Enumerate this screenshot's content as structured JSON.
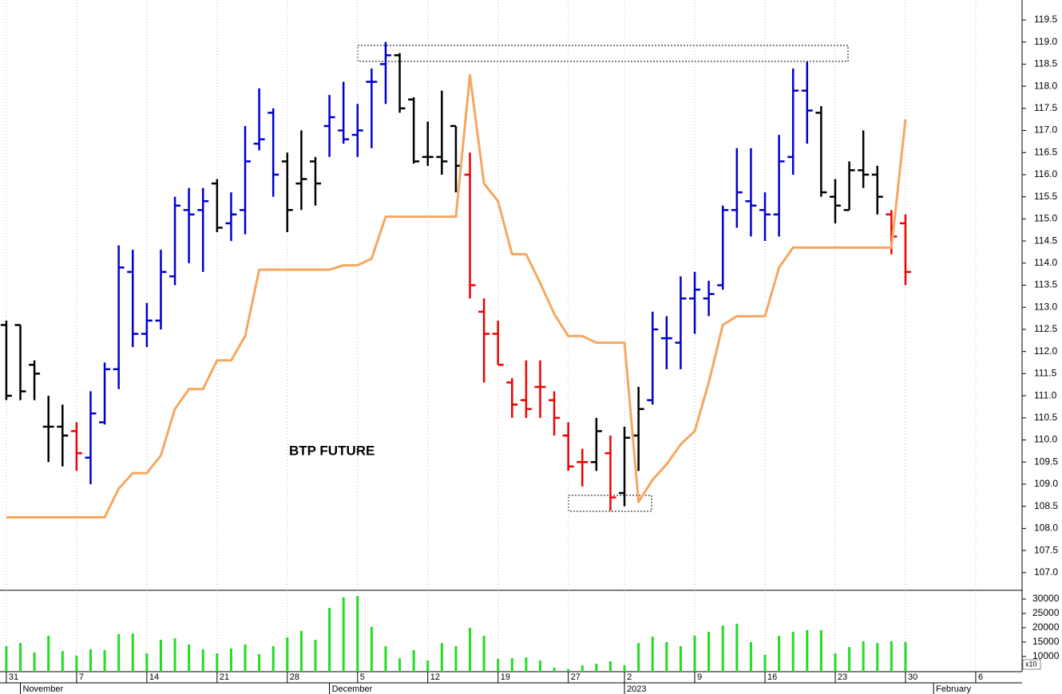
{
  "chart_data": [
    {
      "type": "ohlc",
      "annotation": "BTP FUTURE",
      "xlim": [
        -0.45,
        72.3
      ],
      "ylim": [
        106.6,
        119.95
      ],
      "yticks": [
        {
          "value": 107,
          "label": "107.0"
        },
        107.5,
        {
          "value": 108,
          "label": "108.0"
        },
        108.5,
        {
          "value": 109,
          "label": "109.0"
        },
        109.5,
        {
          "value": 110,
          "label": "110.0"
        },
        110.5,
        {
          "value": 111,
          "label": "111.0"
        },
        111.5,
        {
          "value": 112,
          "label": "112.0"
        },
        112.5,
        {
          "value": 113,
          "label": "113.0"
        },
        113.5,
        {
          "value": 114,
          "label": "114.0"
        },
        114.5,
        {
          "value": 115,
          "label": "115.0"
        },
        115.5,
        {
          "value": 116,
          "label": "116.0"
        },
        116.5,
        {
          "value": 117,
          "label": "117.0"
        },
        117.5,
        {
          "value": 118,
          "label": "118.0"
        },
        118.5,
        {
          "value": 119,
          "label": "119.0"
        },
        119.5
      ],
      "x": [
        0,
        1,
        2,
        3,
        4,
        5,
        6,
        7,
        8,
        9,
        10,
        11,
        12,
        13,
        14,
        15,
        16,
        17,
        18,
        19,
        20,
        21,
        22,
        23,
        24,
        25,
        26,
        27,
        28,
        29,
        30,
        31,
        32,
        33,
        34,
        35,
        36,
        37,
        38,
        39,
        40,
        41,
        42,
        43,
        44,
        45,
        46,
        47,
        48,
        49,
        50,
        51,
        52,
        53,
        54,
        55,
        56,
        57,
        58,
        59,
        60,
        61,
        62,
        63,
        64
      ],
      "open": [
        112.6,
        112.6,
        111.7,
        110.3,
        110.3,
        110.2,
        109.6,
        110.4,
        111.6,
        113.8,
        112.4,
        112.7,
        113.7,
        115.2,
        115.2,
        115.8,
        114.9,
        115.2,
        116.7,
        117.4,
        116.3,
        115.8,
        116.3,
        117.1,
        117.0,
        116.9,
        118.1,
        118.5,
        118.7,
        117.7,
        116.4,
        116.4,
        117.1,
        116.0,
        112.9,
        112.4,
        111.3,
        110.9,
        111.2,
        110.9,
        110.1,
        109.5,
        109.5,
        109.7,
        108.8,
        110.1,
        110.9,
        112.3,
        112.2,
        113.2,
        113.2,
        113.5,
        115.2,
        115.4,
        115.2,
        115.1,
        116.4,
        117.9,
        117.4,
        115.5,
        115.2,
        116.1,
        116.0,
        115.1,
        114.9
      ],
      "high": [
        112.7,
        112.6,
        111.8,
        111.0,
        110.8,
        110.4,
        111.1,
        111.75,
        114.4,
        114.3,
        113.1,
        114.3,
        115.5,
        115.7,
        115.7,
        115.9,
        115.6,
        117.1,
        117.95,
        117.5,
        116.5,
        117.0,
        116.4,
        117.8,
        118.1,
        117.6,
        118.4,
        119.0,
        118.75,
        117.75,
        117.2,
        117.9,
        117.1,
        116.5,
        113.2,
        112.7,
        111.4,
        111.8,
        111.8,
        111.1,
        110.4,
        109.8,
        110.5,
        110.1,
        110.3,
        111.2,
        112.9,
        112.8,
        113.7,
        113.8,
        113.6,
        115.3,
        116.6,
        116.6,
        115.6,
        116.9,
        118.4,
        118.55,
        117.55,
        115.9,
        116.3,
        117.0,
        116.2,
        115.2,
        115.1
      ],
      "low": [
        110.9,
        110.9,
        110.9,
        109.5,
        109.4,
        109.3,
        109.0,
        110.35,
        111.15,
        112.1,
        112.1,
        112.5,
        113.5,
        114.0,
        113.8,
        114.7,
        114.5,
        114.65,
        116.55,
        115.5,
        114.7,
        115.2,
        115.3,
        116.4,
        116.7,
        116.4,
        116.6,
        117.6,
        117.4,
        116.25,
        116.2,
        116.0,
        115.6,
        113.2,
        111.3,
        111.7,
        110.5,
        110.5,
        110.5,
        110.1,
        109.3,
        108.95,
        109.3,
        108.4,
        108.5,
        109.3,
        110.8,
        111.6,
        111.6,
        112.4,
        112.8,
        113.4,
        114.8,
        114.6,
        114.5,
        114.6,
        116.0,
        116.7,
        115.5,
        114.9,
        115.2,
        115.7,
        115.1,
        114.2,
        113.5
      ],
      "close": [
        111.0,
        111.1,
        111.5,
        110.3,
        110.1,
        109.7,
        110.6,
        111.6,
        113.9,
        112.4,
        112.7,
        113.8,
        115.3,
        115.1,
        115.4,
        114.8,
        115.1,
        116.3,
        116.8,
        116.0,
        115.2,
        115.9,
        115.8,
        117.3,
        116.8,
        117.0,
        118.1,
        118.7,
        117.5,
        116.3,
        116.4,
        116.3,
        116.2,
        113.5,
        112.4,
        111.7,
        110.8,
        110.7,
        111.2,
        110.5,
        109.4,
        109.5,
        110.2,
        108.7,
        110.05,
        110.7,
        112.5,
        112.3,
        113.2,
        113.4,
        113.3,
        115.2,
        115.6,
        115.3,
        115.1,
        116.3,
        117.9,
        117.45,
        115.6,
        115.3,
        116.1,
        116.0,
        115.5,
        114.6,
        113.8
      ],
      "bar_colors": [
        "#000000",
        "#000000",
        "#000000",
        "#000000",
        "#000000",
        "#ee0000",
        "#0000cc",
        "#0000cc",
        "#0000cc",
        "#0000cc",
        "#0000cc",
        "#0000cc",
        "#0000cc",
        "#0000cc",
        "#0000cc",
        "#000000",
        "#0000cc",
        "#0000cc",
        "#0000cc",
        "#0000cc",
        "#000000",
        "#000000",
        "#000000",
        "#0000cc",
        "#0000cc",
        "#0000cc",
        "#0000cc",
        "#0000cc",
        "#000000",
        "#000000",
        "#000000",
        "#000000",
        "#000000",
        "#ee0000",
        "#ee0000",
        "#ee0000",
        "#ee0000",
        "#ee0000",
        "#ee0000",
        "#ee0000",
        "#ee0000",
        "#ee0000",
        "#000000",
        "#ee0000",
        "#000000",
        "#000000",
        "#0000cc",
        "#0000cc",
        "#0000cc",
        "#0000cc",
        "#0000cc",
        "#0000cc",
        "#0000cc",
        "#0000cc",
        "#0000cc",
        "#0000cc",
        "#0000cc",
        "#0000cc",
        "#000000",
        "#000000",
        "#000000",
        "#000000",
        "#000000",
        "#ee0000",
        "#ee0000"
      ],
      "line": {
        "color": "#f5a760",
        "values": [
          108.25,
          108.25,
          108.25,
          108.25,
          108.25,
          108.25,
          108.25,
          108.25,
          108.9,
          109.25,
          109.25,
          109.65,
          110.7,
          111.15,
          111.15,
          111.8,
          111.8,
          112.35,
          113.85,
          113.85,
          113.85,
          113.85,
          113.85,
          113.85,
          113.95,
          113.95,
          114.1,
          115.05,
          115.05,
          115.05,
          115.05,
          115.05,
          115.05,
          118.25,
          115.8,
          115.4,
          114.2,
          114.2,
          113.55,
          112.85,
          112.35,
          112.35,
          112.2,
          112.2,
          112.2,
          108.6,
          109.1,
          109.45,
          109.9,
          110.2,
          111.3,
          112.6,
          112.8,
          112.8,
          112.8,
          113.9,
          114.35,
          114.35,
          114.35,
          114.35,
          114.35,
          114.35,
          114.35,
          114.35,
          117.25
        ]
      }
    },
    {
      "type": "bar",
      "color": "#22dd22",
      "xlim": [
        -0.45,
        72.3
      ],
      "ylim": [
        4700,
        33050
      ],
      "yticks": [
        10000,
        15000,
        20000,
        25000,
        30000
      ],
      "multiplier_label": "x10",
      "x": [
        0,
        1,
        2,
        3,
        4,
        5,
        6,
        7,
        8,
        9,
        10,
        11,
        12,
        13,
        14,
        15,
        16,
        17,
        18,
        19,
        20,
        21,
        22,
        23,
        24,
        25,
        26,
        27,
        28,
        29,
        30,
        31,
        32,
        33,
        34,
        35,
        36,
        37,
        38,
        39,
        40,
        41,
        42,
        43,
        44,
        45,
        46,
        47,
        48,
        49,
        50,
        51,
        52,
        53,
        54,
        55,
        56,
        57,
        58,
        59,
        60,
        61,
        62,
        63,
        64
      ],
      "values": [
        13600,
        14700,
        11400,
        17200,
        11900,
        10300,
        12500,
        12200,
        17800,
        18000,
        11100,
        15800,
        16400,
        14200,
        12500,
        11100,
        12800,
        14200,
        10800,
        13600,
        16700,
        18900,
        15800,
        26900,
        30600,
        31100,
        20300,
        13600,
        9400,
        12200,
        8600,
        14700,
        13600,
        20000,
        17200,
        9200,
        9400,
        9700,
        8600,
        6100,
        5600,
        6900,
        7500,
        8300,
        6900,
        14700,
        16900,
        15000,
        13600,
        17200,
        18600,
        20800,
        21400,
        15000,
        10600,
        17200,
        18600,
        19200,
        19200,
        11100,
        13300,
        15300,
        14700,
        15300,
        15000
      ],
      "xticks": [
        {
          "value": 0,
          "label": "31"
        },
        {
          "value": 5,
          "label": "7"
        },
        {
          "value": 10,
          "label": "14"
        },
        {
          "value": 15,
          "label": "21"
        },
        {
          "value": 20,
          "label": "28"
        },
        {
          "value": 25,
          "label": "5"
        },
        {
          "value": 30,
          "label": "12"
        },
        {
          "value": 35,
          "label": "19"
        },
        {
          "value": 40,
          "label": "27"
        },
        {
          "value": 44,
          "label": "2"
        },
        {
          "value": 49,
          "label": "9"
        },
        {
          "value": 54,
          "label": "16"
        },
        {
          "value": 59,
          "label": "23"
        },
        {
          "value": 64,
          "label": "30"
        },
        {
          "value": 69,
          "label": "6"
        }
      ],
      "month_ticks": [
        {
          "value": 1,
          "label": "November"
        },
        {
          "value": 23,
          "label": "December"
        },
        {
          "value": 44,
          "label": "2023"
        },
        {
          "value": 66,
          "label": "February"
        }
      ]
    }
  ]
}
